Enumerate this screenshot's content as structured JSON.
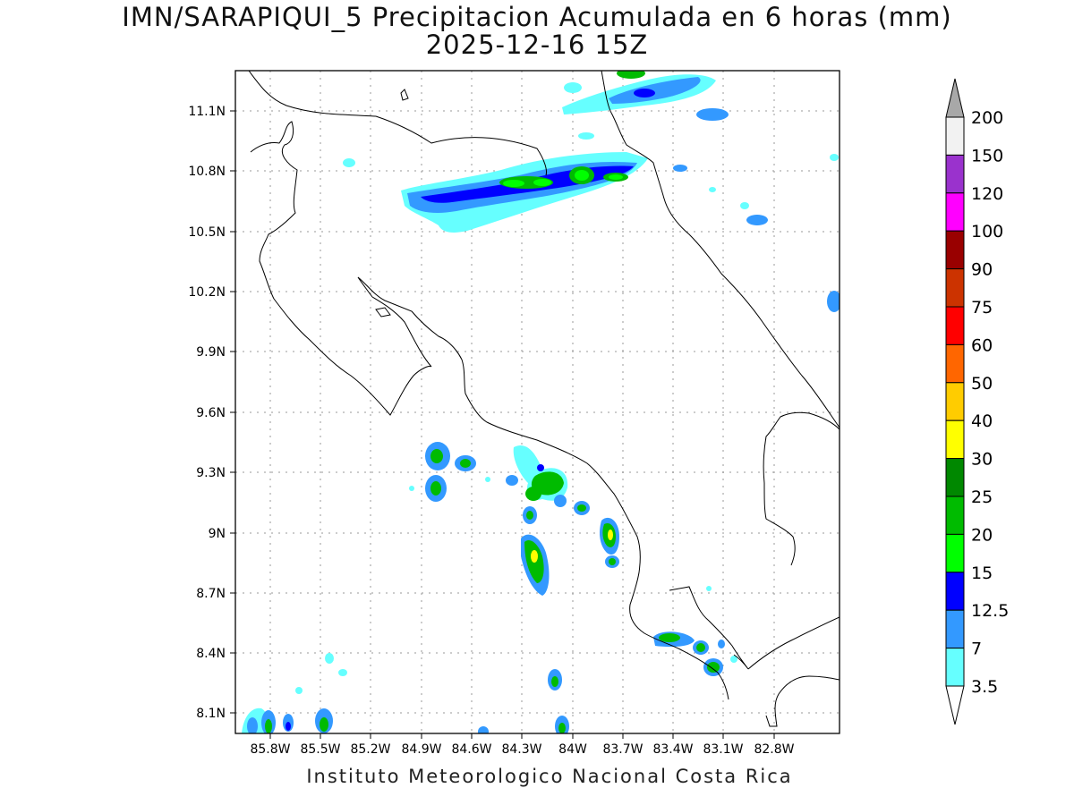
{
  "header": {
    "title_line1": "IMN/SARAPIQUI_5 Precipitacion Acumulada en 6 horas (mm)",
    "title_line2": "2025-12-16 15Z"
  },
  "footer": {
    "credit": "Instituto Meteorologico Nacional Costa Rica"
  },
  "map": {
    "lat_labels": [
      "11.1N",
      "10.8N",
      "10.5N",
      "10.2N",
      "9.9N",
      "9.6N",
      "9.3N",
      "9N",
      "8.7N",
      "8.4N",
      "8.1N"
    ],
    "lon_labels": [
      "85.8W",
      "85.5W",
      "85.2W",
      "84.9W",
      "84.6W",
      "84.3W",
      "84W",
      "83.7W",
      "83.4W",
      "83.1W",
      "82.8W"
    ]
  },
  "colorbar": {
    "labels": [
      "200",
      "150",
      "120",
      "100",
      "90",
      "75",
      "60",
      "50",
      "40",
      "30",
      "25",
      "20",
      "15",
      "12.5",
      "7",
      "3.5"
    ],
    "colors": [
      "#f2f2f2",
      "#9a32cd",
      "#ff00ff",
      "#990000",
      "#cc3300",
      "#ff0000",
      "#ff6600",
      "#ffcc00",
      "#ffff00",
      "#008800",
      "#00bb00",
      "#00ff00",
      "#0000ff",
      "#3399ff",
      "#66ffff"
    ],
    "over_color": "#a8a8a8",
    "under_color": "#ffffff"
  }
}
